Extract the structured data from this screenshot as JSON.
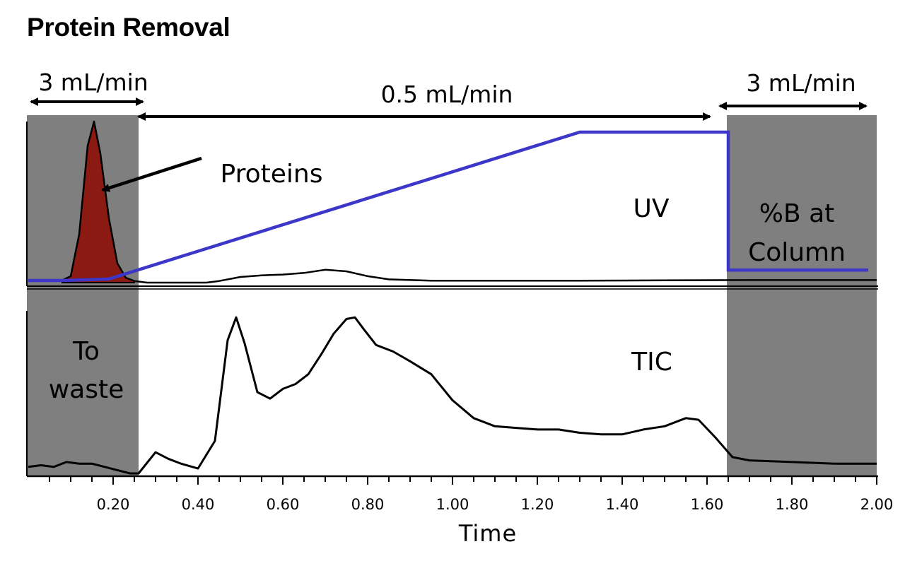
{
  "title": "Protein Removal",
  "colors": {
    "gradient": "#3c37c8",
    "shade": "#7f7f7f",
    "protein_fill": "#8b1a12",
    "trace": "#000000"
  },
  "annotations": {
    "flow_left": "3 mL/min",
    "flow_mid": "0.5 mL/min",
    "flow_right": "3 mL/min",
    "proteins": "Proteins",
    "uv": "UV",
    "tic": "TIC",
    "waste_line1": "To",
    "waste_line2": "waste",
    "percent_b_line1": "%B at",
    "percent_b_line2": "Column"
  },
  "chart_data": {
    "type": "line",
    "xlabel": "Time",
    "xlim": [
      0.0,
      2.0
    ],
    "x_ticks": [
      "0.20",
      "0.40",
      "0.60",
      "0.80",
      "1.00",
      "1.20",
      "1.40",
      "1.60",
      "1.80",
      "2.00"
    ],
    "shaded_regions": [
      [
        0.0,
        0.26
      ],
      [
        1.65,
        2.0
      ]
    ],
    "series": [
      {
        "name": "UV",
        "x": [
          0.0,
          0.02,
          0.05,
          0.08,
          0.1,
          0.12,
          0.14,
          0.155,
          0.17,
          0.19,
          0.21,
          0.23,
          0.25,
          0.28,
          0.35,
          0.42,
          0.45,
          0.5,
          0.55,
          0.6,
          0.65,
          0.7,
          0.75,
          0.8,
          0.85,
          0.95,
          1.1,
          1.3,
          1.5,
          1.7,
          1.85,
          2.0
        ],
        "y": [
          1,
          1,
          1,
          1.5,
          4,
          30,
          85,
          100,
          80,
          40,
          12,
          3,
          1,
          0,
          0,
          0,
          1,
          3.5,
          4.5,
          5,
          6,
          8,
          7,
          4,
          2,
          1.2,
          1.2,
          1.2,
          1.4,
          1.6,
          1.6,
          1.6
        ]
      },
      {
        "name": "%B at Column",
        "x": [
          0.0,
          0.02,
          0.08,
          0.19,
          1.3,
          1.64,
          1.65,
          1.65,
          1.98
        ],
        "y": [
          0,
          0,
          0,
          1,
          100,
          100,
          100,
          7,
          7
        ]
      },
      {
        "name": "TIC",
        "x": [
          0.0,
          0.03,
          0.06,
          0.09,
          0.12,
          0.15,
          0.18,
          0.21,
          0.24,
          0.26,
          0.3,
          0.33,
          0.36,
          0.4,
          0.44,
          0.47,
          0.49,
          0.51,
          0.54,
          0.57,
          0.6,
          0.63,
          0.66,
          0.69,
          0.72,
          0.75,
          0.77,
          0.79,
          0.82,
          0.86,
          0.9,
          0.95,
          1.0,
          1.05,
          1.1,
          1.15,
          1.2,
          1.25,
          1.3,
          1.35,
          1.4,
          1.45,
          1.5,
          1.55,
          1.58,
          1.62,
          1.66,
          1.7,
          1.8,
          1.9,
          2.0
        ],
        "y": [
          4,
          5,
          4,
          7,
          6,
          6,
          4,
          2,
          0,
          0,
          13,
          9,
          6,
          3,
          20,
          82,
          96,
          80,
          50,
          46,
          52,
          55,
          61,
          73,
          86,
          95,
          96,
          89,
          79,
          75,
          69,
          61,
          45,
          34,
          29,
          28,
          27,
          27,
          25,
          24,
          24,
          27,
          29,
          34,
          33,
          22,
          10,
          8,
          7,
          6,
          6
        ]
      }
    ]
  }
}
